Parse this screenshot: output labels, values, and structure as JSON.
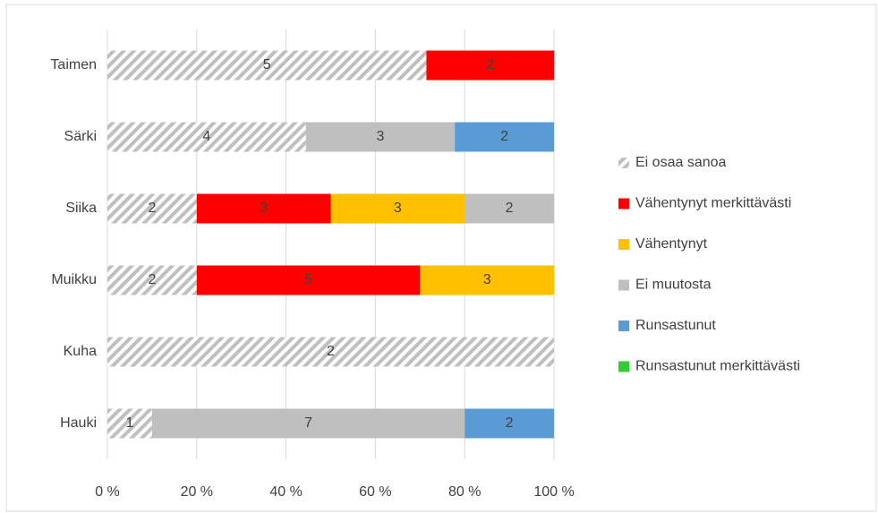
{
  "chart_data": {
    "type": "bar",
    "orientation": "horizontal",
    "stacking": "percent",
    "categories": [
      "Hauki",
      "Kuha",
      "Muikku",
      "Siika",
      "Särki",
      "Taimen"
    ],
    "series": [
      {
        "name": "Ei osaa sanoa",
        "color": "#bfbfbf",
        "pattern": "hatch",
        "values": [
          1,
          2,
          2,
          2,
          4,
          5
        ]
      },
      {
        "name": "Vähentynyt merkittävästi",
        "color": "#ff0000",
        "values": [
          null,
          null,
          5,
          3,
          null,
          2
        ]
      },
      {
        "name": "Vähentynyt",
        "color": "#ffc000",
        "values": [
          null,
          null,
          3,
          3,
          null,
          null
        ]
      },
      {
        "name": "Ei muutosta",
        "color": "#bfbfbf",
        "values": [
          7,
          null,
          null,
          2,
          3,
          null
        ]
      },
      {
        "name": "Runsastunut",
        "color": "#5b9bd5",
        "values": [
          2,
          null,
          null,
          null,
          2,
          null
        ]
      },
      {
        "name": "Runsastunut merkittävästi",
        "color": "#33cc33",
        "values": [
          null,
          null,
          null,
          null,
          null,
          null
        ]
      }
    ],
    "xlim": [
      0,
      100
    ],
    "xticks": [
      {
        "value": 0,
        "label": "0 %"
      },
      {
        "value": 20,
        "label": "20 %"
      },
      {
        "value": 40,
        "label": "40 %"
      },
      {
        "value": 60,
        "label": "60 %"
      },
      {
        "value": 80,
        "label": "80 %"
      },
      {
        "value": 100,
        "label": "100 %"
      }
    ],
    "grid": true,
    "legend": "right"
  }
}
